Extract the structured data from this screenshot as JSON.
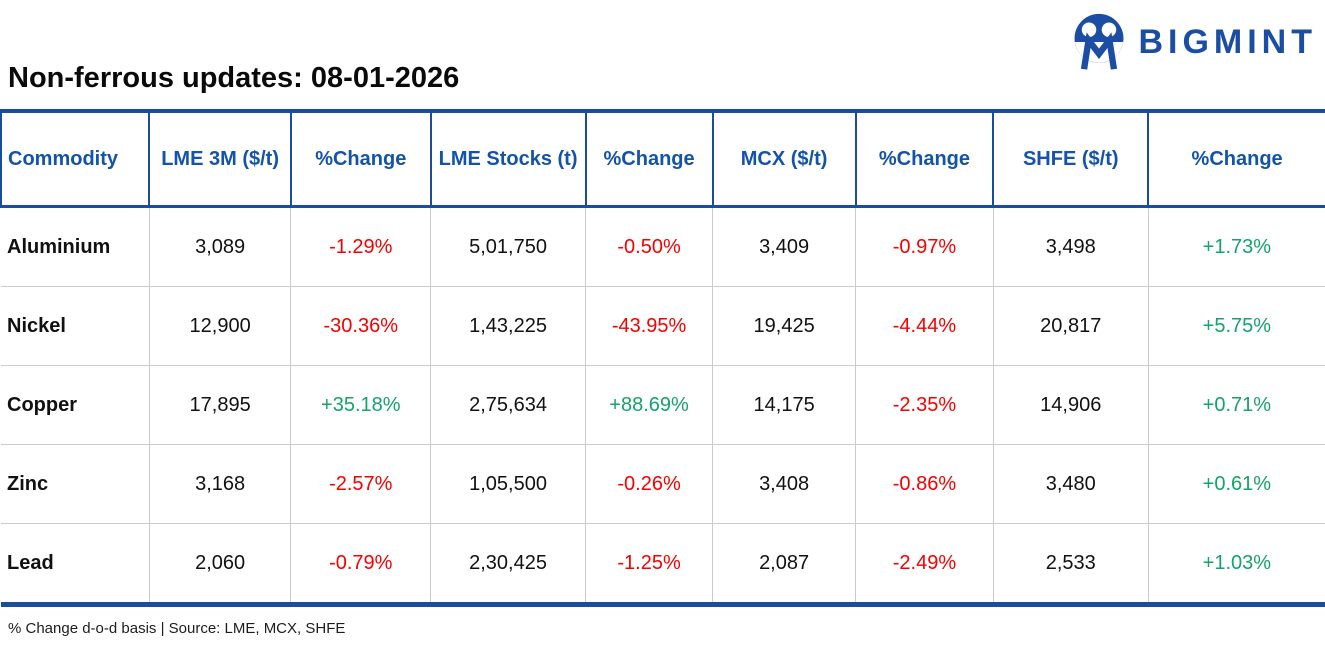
{
  "brand": {
    "name": "BIGMINT",
    "logo_icon": "bigmint-people-m-logo"
  },
  "chart_data": {
    "type": "table",
    "title": "Non-ferrous updates: 08-01-2026",
    "columns": [
      "Commodity",
      "LME 3M ($/t)",
      "%Change",
      "LME Stocks (t)",
      "%Change",
      "MCX ($/t)",
      "%Change",
      "SHFE ($/t)",
      "%Change"
    ],
    "rows": [
      [
        "Aluminium",
        "3,089",
        "-1.29%",
        "5,01,750",
        "-0.50%",
        "3,409",
        "-0.97%",
        "3,498",
        "+1.73%"
      ],
      [
        "Nickel",
        "12,900",
        "-30.36%",
        "1,43,225",
        "-43.95%",
        "19,425",
        "-4.44%",
        "20,817",
        "+5.75%"
      ],
      [
        "Copper",
        "17,895",
        "+35.18%",
        "2,75,634",
        "+88.69%",
        "14,175",
        "-2.35%",
        "14,906",
        "+0.71%"
      ],
      [
        "Zinc",
        "3,168",
        "-2.57%",
        "1,05,500",
        "-0.26%",
        "3,408",
        "-0.86%",
        "3,480",
        "+0.61%"
      ],
      [
        "Lead",
        "2,060",
        "-0.79%",
        "2,30,425",
        "-1.25%",
        "2,087",
        "-2.49%",
        "2,533",
        "+1.03%"
      ]
    ],
    "footnote": "% Change d-o-d basis | Source: LME, MCX, SHFE",
    "layout": {
      "grid": "light-gray inner grid, blue outer top/bottom borders",
      "value_color_positive": "green",
      "value_color_negative": "red"
    }
  },
  "colors": {
    "brand": "#1B4DA2",
    "header_text": "#1353A9",
    "table_border": "#1A4E9B",
    "positive": "#14A368",
    "negative": "#F60000",
    "grid_gray": "#CCCCCC"
  }
}
